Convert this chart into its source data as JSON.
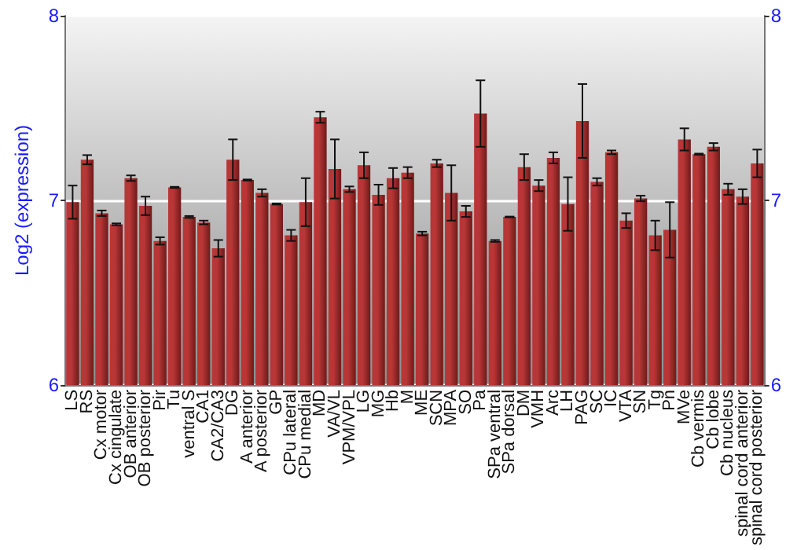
{
  "chart_data": {
    "type": "bar",
    "ylabel": "Log2 (expression)",
    "categories": [
      "LS",
      "RS",
      "Cx motor",
      "Cx cingulate",
      "OB anterior",
      "OB posterior",
      "Pir",
      "Tu",
      "ventral S",
      "CA1",
      "CA2/CA3",
      "DG",
      "A anterior",
      "A posterior",
      "GP",
      "CPu lateral",
      "CPu medial",
      "MD",
      "VA/VL",
      "VPM/VPL",
      "LG",
      "MG",
      "Hb",
      "M",
      "ME",
      "SCN",
      "MPA",
      "SO",
      "Pa",
      "SPa ventral",
      "SPa dorsal",
      "DM",
      "VMH",
      "Arc",
      "LH",
      "PAG",
      "SC",
      "IC",
      "VTA",
      "SN",
      "Tg",
      "Pn",
      "MVe",
      "Cb vermis",
      "Cb lobe",
      "Cb nucleus",
      "spinal cord anterior",
      "spinal cord posterior"
    ],
    "values": [
      6.99,
      7.22,
      6.93,
      6.87,
      7.12,
      6.97,
      6.78,
      7.07,
      6.91,
      6.88,
      6.74,
      7.22,
      7.11,
      7.04,
      6.98,
      6.81,
      6.99,
      7.45,
      7.17,
      7.06,
      7.19,
      7.03,
      7.12,
      7.15,
      6.82,
      7.2,
      7.04,
      6.94,
      7.47,
      6.78,
      6.91,
      7.18,
      7.08,
      7.23,
      6.98,
      7.43,
      7.1,
      7.26,
      6.89,
      7.01,
      6.81,
      6.84,
      7.33,
      7.25,
      7.29,
      7.06,
      7.02,
      7.2
    ],
    "errors": [
      0.09,
      0.025,
      0.015,
      0.005,
      0.015,
      0.05,
      0.02,
      0.003,
      0.005,
      0.01,
      0.045,
      0.11,
      0.003,
      0.02,
      0.003,
      0.03,
      0.13,
      0.03,
      0.16,
      0.015,
      0.07,
      0.055,
      0.055,
      0.03,
      0.01,
      0.02,
      0.15,
      0.03,
      0.18,
      0.005,
      0.002,
      0.07,
      0.03,
      0.03,
      0.145,
      0.2,
      0.02,
      0.01,
      0.04,
      0.015,
      0.08,
      0.15,
      0.06,
      0.003,
      0.02,
      0.03,
      0.04,
      0.075
    ],
    "color": "#b83636",
    "ylim": [
      6,
      8
    ],
    "yticks": [
      6,
      7,
      8
    ],
    "y2lim": [
      6,
      8
    ],
    "y2ticks": [
      6,
      7,
      8
    ],
    "grid": "y"
  }
}
